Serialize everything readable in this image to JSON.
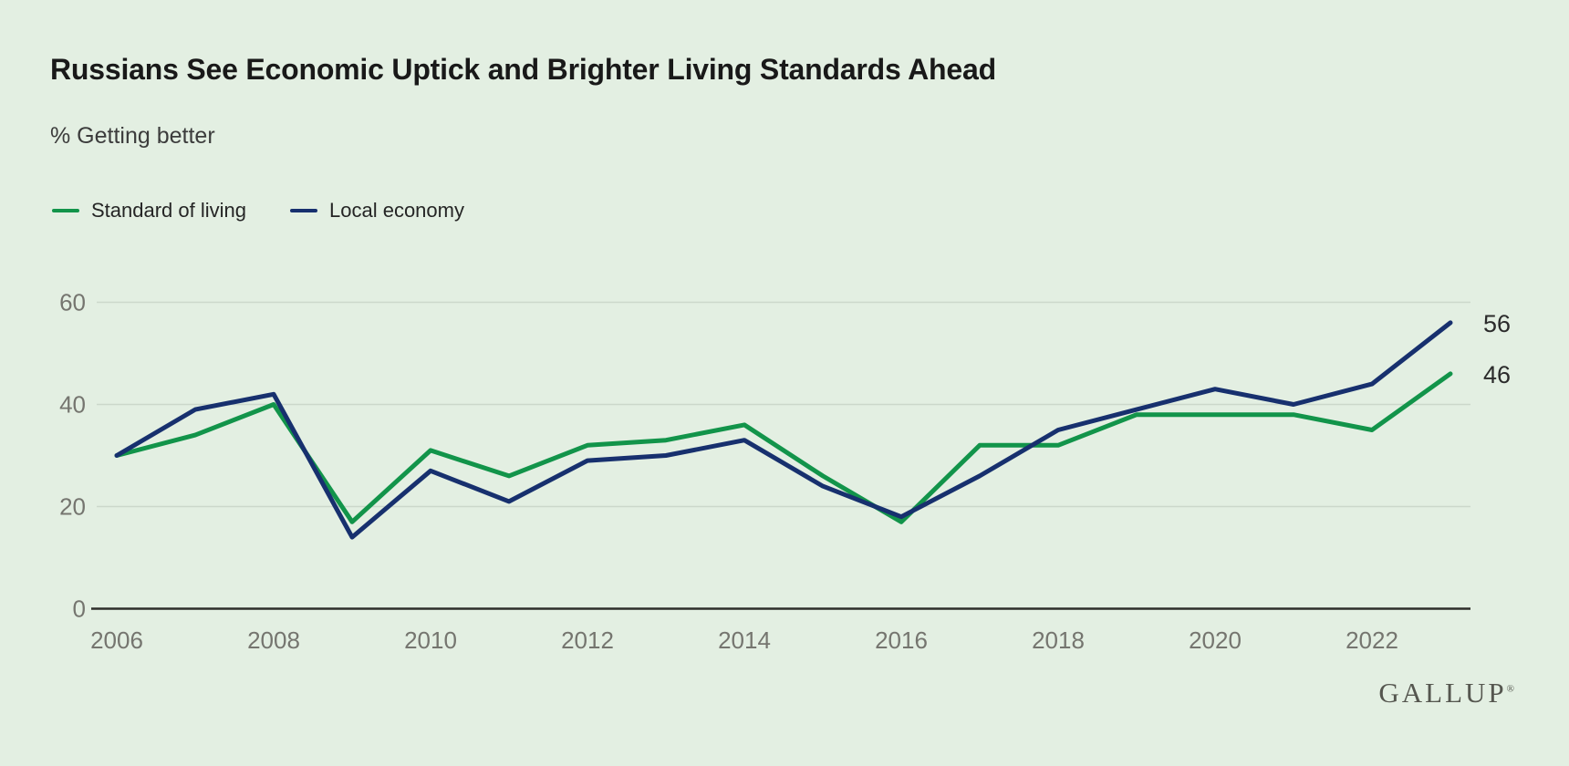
{
  "header": {
    "title": "Russians See Economic Uptick and Brighter Living Standards Ahead",
    "subtitle": "% Getting better"
  },
  "legend": {
    "items": [
      {
        "label": "Standard of living",
        "color": "#12944a"
      },
      {
        "label": "Local economy",
        "color": "#17306e"
      }
    ]
  },
  "chart_data": {
    "type": "line",
    "title": "Russians See Economic Uptick and Brighter Living Standards Ahead",
    "subtitle": "% Getting better",
    "xlabel": "",
    "ylabel": "% Getting better",
    "x": [
      2006,
      2007,
      2008,
      2009,
      2010,
      2011,
      2012,
      2013,
      2014,
      2015,
      2016,
      2017,
      2018,
      2019,
      2020,
      2021,
      2022,
      2023
    ],
    "series": [
      {
        "name": "Standard of living",
        "color": "#12944a",
        "values": [
          30,
          34,
          40,
          17,
          31,
          26,
          32,
          33,
          36,
          26,
          17,
          32,
          32,
          38,
          38,
          38,
          35,
          46
        ],
        "end_label": "46"
      },
      {
        "name": "Local economy",
        "color": "#17306e",
        "values": [
          30,
          39,
          42,
          14,
          27,
          21,
          29,
          30,
          33,
          24,
          18,
          26,
          35,
          39,
          43,
          40,
          44,
          56
        ],
        "end_label": "56"
      }
    ],
    "xticks": [
      2006,
      2008,
      2010,
      2012,
      2014,
      2016,
      2018,
      2020,
      2022
    ],
    "yticks": [
      0,
      20,
      40,
      60
    ],
    "ylim": [
      0,
      65
    ],
    "grid": true,
    "legend_position": "top-left",
    "colors": {
      "background": "#e3efe2",
      "gridline": "#ccd8cb",
      "axis": "#2e2e2a",
      "tick_text": "#75756f",
      "end_label_text": "#2b2b2b"
    }
  },
  "footer": {
    "brand": "GALLUP",
    "registered_mark": "®"
  }
}
